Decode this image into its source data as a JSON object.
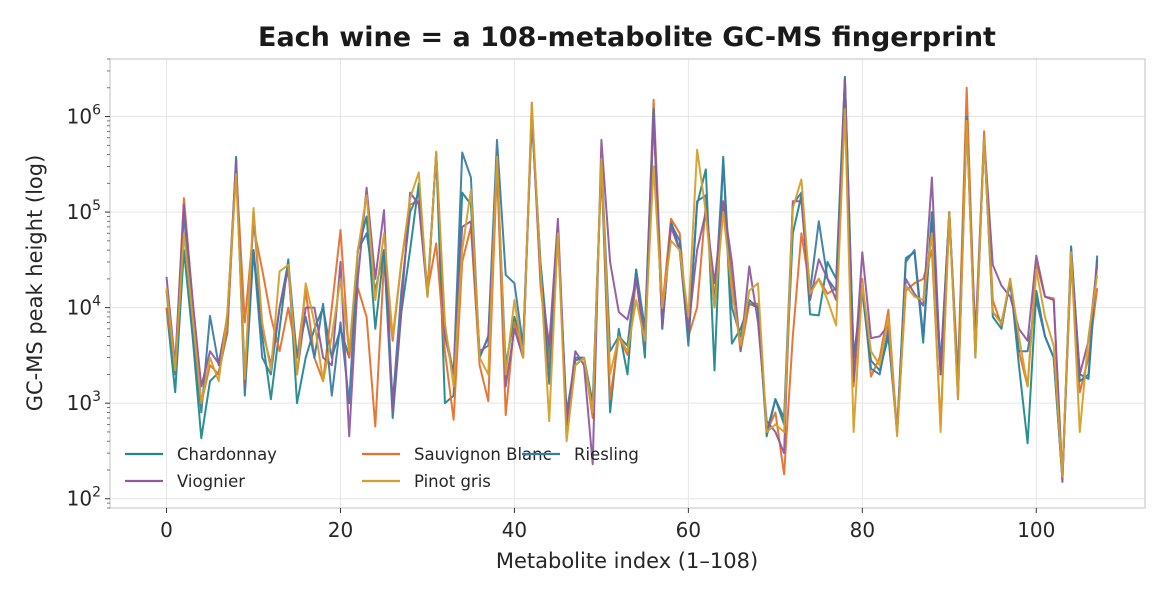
{
  "chart_data": {
    "type": "line",
    "title": "Each wine = a 108-metabolite GC-MS fingerprint",
    "xlabel": "Metabolite index (1–108)",
    "ylabel": "GC-MS peak height (log)",
    "yscale": "log",
    "xlim": [
      -6.5,
      112.5
    ],
    "ylim": [
      80,
      4000000
    ],
    "xticks": [
      0,
      20,
      40,
      60,
      80,
      100
    ],
    "xtick_labels": [
      "0",
      "20",
      "40",
      "60",
      "80",
      "100"
    ],
    "yticks": [
      100,
      1000,
      10000,
      100000,
      1000000
    ],
    "ytick_labels": [
      {
        "base": "10",
        "exp": "2"
      },
      {
        "base": "10",
        "exp": "3"
      },
      {
        "base": "10",
        "exp": "4"
      },
      {
        "base": "10",
        "exp": "5"
      },
      {
        "base": "10",
        "exp": "6"
      }
    ],
    "grid": true,
    "legend_position": "lower-left",
    "legend_columns": 3,
    "x": [
      0,
      1,
      2,
      3,
      4,
      5,
      6,
      7,
      8,
      9,
      10,
      11,
      12,
      13,
      14,
      15,
      16,
      17,
      18,
      19,
      20,
      21,
      22,
      23,
      24,
      25,
      26,
      27,
      28,
      29,
      30,
      31,
      32,
      33,
      34,
      35,
      36,
      37,
      38,
      39,
      40,
      41,
      42,
      43,
      44,
      45,
      46,
      47,
      48,
      49,
      50,
      51,
      52,
      53,
      54,
      55,
      56,
      57,
      58,
      59,
      60,
      61,
      62,
      63,
      64,
      65,
      66,
      67,
      68,
      69,
      70,
      71,
      72,
      73,
      74,
      75,
      76,
      77,
      78,
      79,
      80,
      81,
      82,
      83,
      84,
      85,
      86,
      87,
      88,
      89,
      90,
      91,
      92,
      93,
      94,
      95,
      96,
      97,
      98,
      99,
      100,
      101,
      102,
      103,
      104,
      105,
      106,
      107
    ],
    "series": [
      {
        "name": "Chardonnay",
        "color": "#20888a",
        "values": [
          10000,
          1300,
          40000,
          5000,
          430,
          1700,
          2100,
          5500,
          380000,
          1200,
          40000,
          5000,
          1100,
          6000,
          32000,
          1000,
          3000,
          6000,
          10000,
          3000,
          6000,
          3000,
          40000,
          90000,
          6000,
          40000,
          700,
          9000,
          40000,
          200000,
          13000,
          420000,
          1000,
          1200,
          160000,
          120000,
          3000,
          5000,
          300000,
          2500,
          8000,
          4000,
          1000000,
          30000,
          3000,
          60000,
          600,
          3000,
          3000,
          1000,
          300000,
          800,
          6000,
          2000,
          25000,
          3000,
          1100000,
          6000,
          80000,
          40000,
          4500,
          120000,
          280000,
          2200,
          380000,
          4200,
          6000,
          11000,
          10000,
          450,
          1100,
          600,
          60000,
          150000,
          8500,
          8300,
          30000,
          20000,
          2600000,
          3000,
          15000,
          2800,
          2200,
          5000,
          500,
          33000,
          38000,
          4300,
          100000,
          2500,
          100000,
          1500,
          1000000,
          3500,
          600000,
          8000,
          6000,
          20000,
          2500,
          380,
          15000,
          5000,
          3000,
          160,
          42000,
          2000,
          1800,
          32000
        ]
      },
      {
        "name": "Sauvignon Blanc",
        "color": "#e6702d",
        "values": [
          10000,
          2500,
          140000,
          12000,
          1000,
          2500,
          2000,
          6000,
          300000,
          7000,
          70000,
          25000,
          8000,
          3500,
          10000,
          3000,
          15000,
          3000,
          1700,
          10000,
          65000,
          3000,
          16000,
          8000,
          570,
          30000,
          4500,
          30000,
          120000,
          130000,
          15000,
          47000,
          3500,
          670,
          30000,
          70000,
          2500,
          1050,
          300000,
          750,
          7000,
          3000,
          1400000,
          17000,
          2400,
          70000,
          500,
          2500,
          3000,
          700,
          350000,
          1100,
          5000,
          3200,
          20000,
          5000,
          1500000,
          10000,
          85000,
          60000,
          5000,
          10000,
          120000,
          12000,
          130000,
          20000,
          3500,
          11000,
          11000,
          500,
          800,
          180,
          5000,
          60000,
          15000,
          20000,
          14000,
          16000,
          1300000,
          1500,
          20000,
          1900,
          3000,
          9500,
          500,
          15000,
          18000,
          20000,
          40000,
          600,
          90000,
          2000,
          2000000,
          3500,
          700000,
          12000,
          6500,
          20000,
          3500,
          1500,
          30000,
          13000,
          12500,
          170,
          30000,
          1300,
          3000,
          16000
        ]
      },
      {
        "name": "Riesling",
        "color": "#3a7ca5",
        "values": [
          15000,
          2000,
          100000,
          6000,
          800,
          8200,
          2500,
          8000,
          300000,
          2000,
          40000,
          3000,
          2000,
          10000,
          30000,
          3000,
          8000,
          3000,
          11000,
          1200,
          7000,
          1000,
          40000,
          60000,
          15000,
          40000,
          1000,
          15000,
          100000,
          160000,
          15000,
          400000,
          6000,
          2000,
          420000,
          230000,
          3000,
          5000,
          570000,
          22000,
          18000,
          4000,
          1000000,
          28000,
          1600,
          60000,
          800,
          2800,
          3000,
          900,
          360000,
          3500,
          5000,
          4000,
          25000,
          6000,
          1200000,
          6000,
          75000,
          50000,
          4000,
          130000,
          150000,
          10000,
          350000,
          10000,
          5000,
          12000,
          10000,
          500,
          1100,
          700,
          120000,
          160000,
          15000,
          80000,
          20000,
          15000,
          2500000,
          3000,
          15000,
          2300,
          2000,
          6000,
          500,
          30000,
          40000,
          5000,
          90000,
          2000,
          100000,
          1500,
          1000000,
          3000,
          600000,
          9000,
          7000,
          18000,
          3500,
          3500,
          12000,
          5000,
          3000,
          160,
          44000,
          1700,
          2000,
          35000
        ]
      },
      {
        "name": "Viognier",
        "color": "#8e5aa0",
        "values": [
          21000,
          2500,
          120000,
          12000,
          1500,
          3500,
          2600,
          8000,
          350000,
          1500,
          100000,
          6000,
          2500,
          10000,
          25000,
          2000,
          10000,
          10000,
          3000,
          2500,
          30000,
          450,
          20000,
          180000,
          20000,
          105000,
          800,
          10000,
          160000,
          120000,
          13000,
          420000,
          5000,
          2000,
          70000,
          80000,
          3500,
          4000,
          350000,
          1500,
          6000,
          3000,
          1100000,
          20000,
          4000,
          85000,
          600,
          3500,
          2500,
          230,
          570000,
          30000,
          9000,
          7500,
          20000,
          4200,
          1000000,
          6500,
          70000,
          40000,
          6000,
          40000,
          100000,
          18000,
          130000,
          30000,
          3500,
          27000,
          7000,
          650,
          500,
          300,
          130000,
          130000,
          12000,
          32000,
          20000,
          12000,
          2400000,
          1700,
          38000,
          4800,
          5000,
          6500,
          500,
          20000,
          14000,
          10500,
          230000,
          2000,
          100000,
          1100,
          900000,
          5000,
          600000,
          28000,
          17000,
          13000,
          6000,
          4500,
          35000,
          13000,
          12000,
          150,
          35000,
          2000,
          4500,
          28000
        ]
      },
      {
        "name": "Pinot gris",
        "color": "#d4a02a",
        "values": [
          16000,
          2200,
          60000,
          8000,
          1000,
          3000,
          1700,
          9000,
          250000,
          1800,
          110000,
          7000,
          2200,
          24000,
          28000,
          2000,
          18000,
          7000,
          1700,
          5000,
          20000,
          3500,
          40000,
          150000,
          12000,
          60000,
          5000,
          30000,
          140000,
          260000,
          13000,
          430000,
          7000,
          1500,
          40000,
          170000,
          3000,
          2000,
          380000,
          2000,
          12000,
          3000,
          1350000,
          25000,
          650,
          60000,
          400,
          2500,
          3000,
          800,
          360000,
          2000,
          5000,
          3500,
          12000,
          4500,
          300000,
          10000,
          50000,
          40000,
          8000,
          450000,
          100000,
          10000,
          100000,
          15000,
          4000,
          15000,
          18000,
          500,
          600,
          500,
          110000,
          220000,
          14000,
          20000,
          12000,
          6500,
          1200000,
          500,
          18000,
          3500,
          2500,
          8000,
          450,
          17000,
          13000,
          12000,
          60000,
          500,
          100000,
          1100,
          900000,
          3000,
          600000,
          9000,
          6800,
          20000,
          5000,
          1500,
          25000,
          8000,
          4000,
          170,
          38000,
          500,
          5000,
          22000
        ]
      }
    ]
  }
}
